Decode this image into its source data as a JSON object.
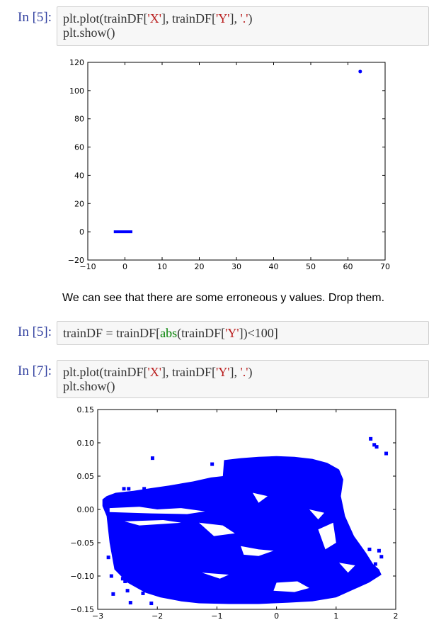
{
  "cells": [
    {
      "prompt": "In [5]:",
      "code_line1": {
        "a": "plt.plot(trainDF[",
        "b": "'X'",
        "c": "], trainDF[",
        "d": "'Y'",
        "e": "], ",
        "f": "'.'",
        "g": ")"
      },
      "code_line2": "plt.show()"
    },
    {
      "prompt": "In [5]:",
      "code": {
        "a": "trainDF = trainDF[",
        "b": "abs",
        "c": "(trainDF[",
        "d": "'Y'",
        "e": "])",
        "f": "<100",
        "g": "]"
      }
    },
    {
      "prompt": "In [7]:",
      "code_line1": {
        "a": "plt.plot(trainDF[",
        "b": "'X'",
        "c": "], trainDF[",
        "d": "'Y'",
        "e": "], ",
        "f": "'.'",
        "g": ")"
      },
      "code_line2": "plt.show()"
    }
  ],
  "markdown_text": "We can see that there are some erroneous y values. Drop them.",
  "chart_data": [
    {
      "type": "scatter",
      "xlim": [
        -10,
        70
      ],
      "ylim": [
        -20,
        120
      ],
      "x_ticks": [
        "−10",
        "0",
        "10",
        "20",
        "30",
        "40",
        "50",
        "60",
        "70"
      ],
      "y_ticks": [
        "120",
        "100",
        "80",
        "60",
        "40",
        "20",
        "0",
        "−20"
      ],
      "marker_color": "#0000ff",
      "cluster": {
        "x_range": [
          -3,
          2
        ],
        "y": 0
      },
      "outliers": [
        {
          "x": 63.3,
          "y": 113.5
        }
      ]
    },
    {
      "type": "scatter",
      "xlim": [
        -3,
        2
      ],
      "ylim": [
        -0.15,
        0.15
      ],
      "x_ticks": [
        "−3",
        "−2",
        "−1",
        "0",
        "1",
        "2"
      ],
      "y_ticks": [
        "0.15",
        "0.10",
        "0.05",
        "0.00",
        "−0.05",
        "−0.10",
        "−0.15"
      ],
      "marker_color": "#0000ff",
      "points": [
        {
          "x": -2.08,
          "y": 0.077
        },
        {
          "x": -1.08,
          "y": 0.068
        },
        {
          "x": 1.58,
          "y": 0.106
        },
        {
          "x": 1.64,
          "y": 0.097
        },
        {
          "x": 1.68,
          "y": 0.094
        },
        {
          "x": 1.84,
          "y": 0.084
        },
        {
          "x": -2.56,
          "y": 0.031
        },
        {
          "x": -2.48,
          "y": 0.031
        },
        {
          "x": -2.22,
          "y": 0.031
        },
        {
          "x": -2.86,
          "y": 0.014
        },
        {
          "x": -2.82,
          "y": -0.072
        },
        {
          "x": -2.77,
          "y": -0.1
        },
        {
          "x": -2.58,
          "y": -0.104
        },
        {
          "x": -2.54,
          "y": -0.108
        },
        {
          "x": -2.5,
          "y": -0.122
        },
        {
          "x": -2.74,
          "y": -0.127
        },
        {
          "x": -2.24,
          "y": -0.126
        },
        {
          "x": -2.1,
          "y": -0.141
        },
        {
          "x": -2.45,
          "y": -0.14
        },
        {
          "x": 1.72,
          "y": -0.062
        },
        {
          "x": 1.76,
          "y": -0.071
        },
        {
          "x": 1.66,
          "y": -0.082
        },
        {
          "x": 1.56,
          "y": -0.06
        },
        {
          "x": 0.92,
          "y": -0.014
        },
        {
          "x": 0.88,
          "y": -0.012
        }
      ]
    }
  ]
}
